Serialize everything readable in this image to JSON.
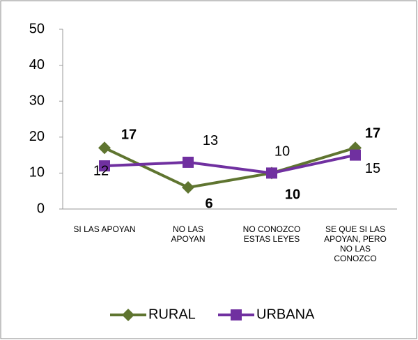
{
  "chart_data": {
    "type": "line",
    "categories": [
      "SI LAS APOYAN",
      "NO LAS\nAPOYAN",
      "NO CONOZCO\nESTAS LEYES",
      "SE QUE SI LAS\nAPOYAN, PERO\nNO LAS\nCONOZCO"
    ],
    "series": [
      {
        "name": "RURAL",
        "color": "#5f7530",
        "marker": "diamond",
        "values": [
          17,
          6,
          10,
          17
        ]
      },
      {
        "name": "URBANA",
        "color": "#7030a0",
        "marker": "square",
        "values": [
          12,
          13,
          10,
          15
        ]
      }
    ],
    "ylim": [
      0,
      50
    ],
    "yticks": [
      0,
      10,
      20,
      30,
      40,
      50
    ],
    "grid": false,
    "legend": "bottom"
  }
}
